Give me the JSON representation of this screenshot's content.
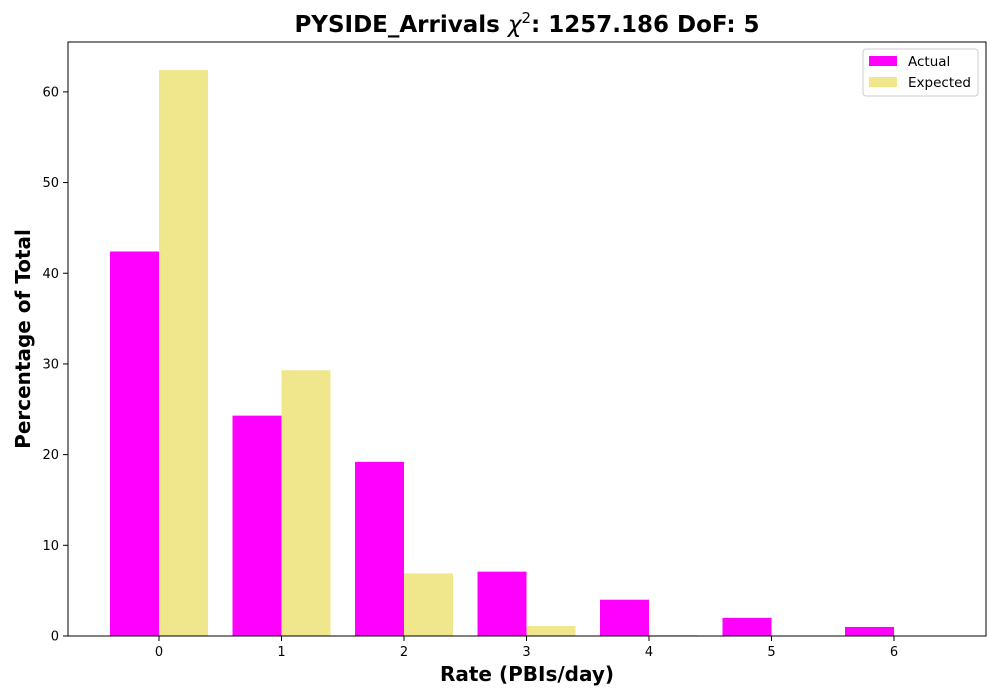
{
  "chart_data": {
    "type": "bar",
    "title_prefix": "PYSIDE_Arrivals ",
    "title_symbol": "χ",
    "title_power": "2",
    "title_suffix": ": 1257.186 DoF: 5",
    "xlabel": "Rate (PBIs/day)",
    "ylabel": "Percentage of Total",
    "categories": [
      "0",
      "1",
      "2",
      "3",
      "4",
      "5",
      "6"
    ],
    "series": [
      {
        "name": "Actual",
        "color": "#ff00ff",
        "values": [
          42.4,
          24.3,
          19.2,
          7.1,
          4.0,
          2.0,
          1.0
        ]
      },
      {
        "name": "Expected",
        "color": "#f0e68c",
        "values": [
          62.4,
          29.3,
          6.9,
          1.1,
          0.1,
          0.0,
          0.0
        ]
      }
    ],
    "ylim": [
      0,
      65.5
    ],
    "yticks": [
      0,
      10,
      20,
      30,
      40,
      50,
      60
    ],
    "grid": false,
    "legend_position": "top-right"
  }
}
